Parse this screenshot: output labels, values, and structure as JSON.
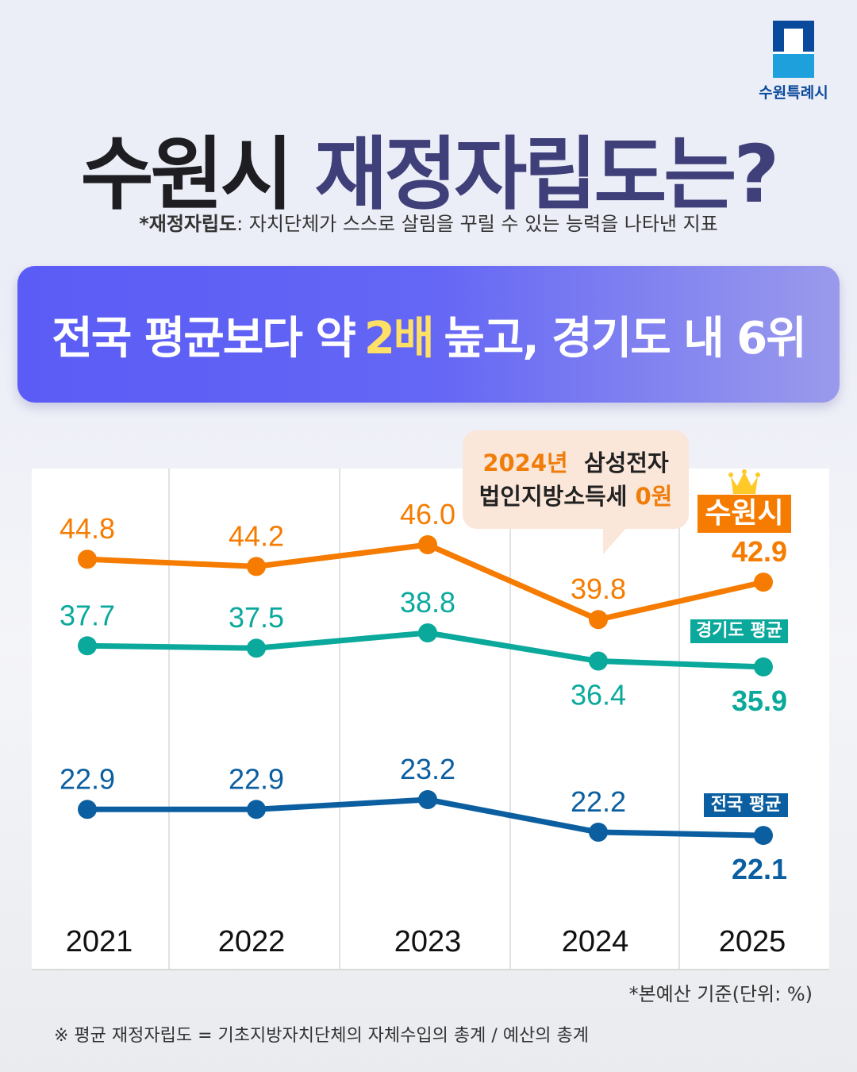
{
  "logo": {
    "text": "수원특례시"
  },
  "header": {
    "title_part1": "수원시",
    "title_part2": "재정자립도는?",
    "subtitle_term": "*재정자립도",
    "subtitle_text": ": 자치단체가 스스로 살림을 꾸릴 수 있는 능력을 나타낸 지표"
  },
  "banner": {
    "before": "전국 평균보다 약",
    "highlight": "2배",
    "after": "높고, 경기도 내 6위"
  },
  "callout": {
    "line1_year": "2024년",
    "line1_rest": "삼성전자",
    "line2_rest": "법인지방소득세",
    "line2_value": "0원"
  },
  "colors": {
    "suwon": "#f57c00",
    "gyeonggi": "#0aa99c",
    "national": "#0b5fa0",
    "banner": "#5a5cf5",
    "highlight": "#ffe066"
  },
  "chart_data": {
    "type": "line",
    "categories": [
      "2021",
      "2022",
      "2023",
      "2024",
      "2025"
    ],
    "series": [
      {
        "name": "수원시",
        "values": [
          44.8,
          44.2,
          46.0,
          39.8,
          42.9
        ],
        "color": "#f57c00"
      },
      {
        "name": "경기도 평균",
        "values": [
          37.7,
          37.5,
          38.8,
          36.4,
          35.9
        ],
        "color": "#0aa99c"
      },
      {
        "name": "전국 평균",
        "values": [
          22.9,
          22.9,
          23.2,
          22.2,
          22.1
        ],
        "color": "#0b5fa0"
      }
    ],
    "grid": "vertical",
    "unit_note": "*본예산 기준(단위: %)"
  },
  "footnote": "※ 평균 재정자립도 = 기초지방자치단체의 자체수입의 총계 / 예산의 총계"
}
